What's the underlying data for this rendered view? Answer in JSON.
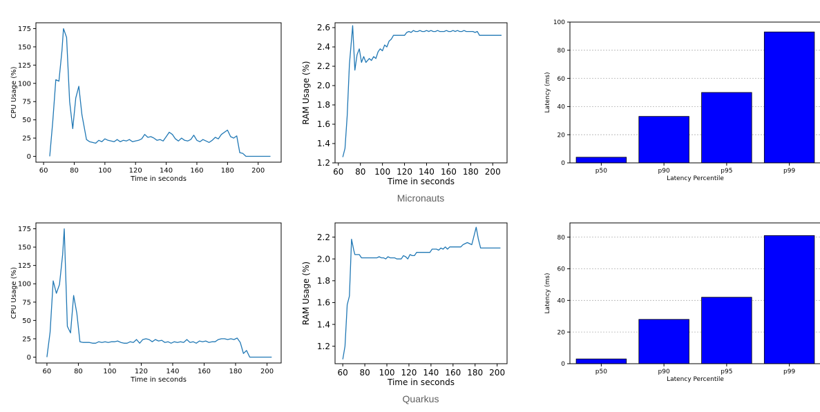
{
  "colors": {
    "line": "#1f77b4",
    "bar": "#0000ff",
    "axis": "#000000",
    "grid": "#b0b0b0"
  },
  "groups": [
    {
      "caption": "Micronauts"
    },
    {
      "caption": "Quarkus"
    }
  ],
  "chart_data": [
    {
      "id": "micronauts-cpu",
      "type": "line",
      "title": "",
      "xlabel": "Time in seconds",
      "ylabel": "CPU Usage (%)",
      "xlim": [
        55,
        215
      ],
      "ylim": [
        -8,
        183
      ],
      "xticks": [
        60,
        80,
        100,
        120,
        140,
        160,
        180,
        200
      ],
      "yticks": [
        0,
        25,
        50,
        75,
        100,
        125,
        150,
        175
      ],
      "grid": false,
      "series": [
        {
          "name": "CPU Usage",
          "x": [
            64,
            66,
            68,
            70,
            72,
            73,
            75,
            77,
            79,
            81,
            83,
            85,
            88,
            90,
            92,
            94,
            96,
            98,
            100,
            102,
            104,
            106,
            108,
            110,
            112,
            114,
            116,
            118,
            120,
            122,
            124,
            126,
            128,
            130,
            132,
            134,
            136,
            138,
            140,
            142,
            144,
            146,
            148,
            150,
            152,
            154,
            156,
            158,
            160,
            162,
            164,
            166,
            168,
            170,
            172,
            174,
            176,
            178,
            180,
            182,
            184,
            186,
            188,
            190,
            192,
            194,
            196,
            198,
            200,
            202,
            204,
            206,
            208
          ],
          "y": [
            0,
            48,
            105,
            103,
            145,
            175,
            163,
            75,
            38,
            80,
            96,
            57,
            23,
            20,
            19,
            18,
            22,
            20,
            24,
            22,
            21,
            20,
            23,
            20,
            22,
            21,
            23,
            20,
            21,
            22,
            24,
            30,
            26,
            27,
            25,
            22,
            23,
            21,
            27,
            33,
            30,
            24,
            21,
            25,
            22,
            21,
            23,
            29,
            22,
            20,
            23,
            21,
            19,
            22,
            26,
            24,
            30,
            33,
            36,
            27,
            25,
            28,
            5,
            4,
            0,
            0,
            0,
            0,
            0,
            0,
            0,
            0,
            0
          ]
        }
      ]
    },
    {
      "id": "micronauts-ram",
      "type": "line",
      "title": "",
      "xlabel": "Time in seconds",
      "ylabel": "RAM Usage (%)",
      "xlim": [
        57,
        213
      ],
      "ylim": [
        1.2,
        2.65
      ],
      "xticks": [
        60,
        80,
        100,
        120,
        140,
        160,
        180,
        200
      ],
      "yticks": [
        1.2,
        1.4,
        1.6,
        1.8,
        2.0,
        2.2,
        2.4,
        2.6
      ],
      "grid": false,
      "series": [
        {
          "name": "RAM Usage",
          "x": [
            64,
            66,
            68,
            70,
            72,
            73,
            75,
            77,
            79,
            81,
            83,
            85,
            88,
            90,
            92,
            94,
            96,
            98,
            100,
            102,
            104,
            106,
            108,
            110,
            112,
            114,
            116,
            118,
            120,
            122,
            124,
            126,
            128,
            130,
            132,
            134,
            136,
            138,
            140,
            142,
            144,
            146,
            148,
            150,
            152,
            154,
            156,
            158,
            160,
            162,
            164,
            166,
            168,
            170,
            172,
            174,
            176,
            178,
            180,
            182,
            184,
            186,
            188,
            190,
            192,
            194,
            196,
            198,
            200,
            202,
            204,
            206,
            208
          ],
          "y": [
            1.26,
            1.35,
            1.69,
            2.22,
            2.48,
            2.62,
            2.16,
            2.32,
            2.38,
            2.24,
            2.3,
            2.24,
            2.28,
            2.26,
            2.3,
            2.28,
            2.35,
            2.38,
            2.36,
            2.42,
            2.4,
            2.46,
            2.48,
            2.52,
            2.52,
            2.52,
            2.52,
            2.52,
            2.52,
            2.55,
            2.56,
            2.55,
            2.57,
            2.56,
            2.56,
            2.57,
            2.56,
            2.56,
            2.57,
            2.56,
            2.57,
            2.56,
            2.56,
            2.57,
            2.56,
            2.56,
            2.56,
            2.57,
            2.56,
            2.56,
            2.57,
            2.56,
            2.57,
            2.56,
            2.56,
            2.57,
            2.56,
            2.56,
            2.56,
            2.56,
            2.55,
            2.56,
            2.52,
            2.52,
            2.52,
            2.52,
            2.52,
            2.52,
            2.52,
            2.52,
            2.52,
            2.52,
            2.52
          ]
        }
      ]
    },
    {
      "id": "micronauts-latency",
      "type": "bar",
      "title": "",
      "xlabel": "Latency Percentile",
      "ylabel": "Latency (ms)",
      "categories": [
        "p50",
        "p90",
        "p95",
        "p99"
      ],
      "values": [
        4,
        33,
        50,
        93
      ],
      "ylim": [
        0,
        100
      ],
      "yticks": [
        0,
        20,
        40,
        60,
        80,
        100
      ],
      "grid": true
    },
    {
      "id": "quarkus-cpu",
      "type": "line",
      "title": "",
      "xlabel": "Time in seconds",
      "ylabel": "CPU Usage (%)",
      "xlim": [
        53,
        209
      ],
      "ylim": [
        -8,
        183
      ],
      "xticks": [
        60,
        80,
        100,
        120,
        140,
        160,
        180,
        200
      ],
      "yticks": [
        0,
        25,
        50,
        75,
        100,
        125,
        150,
        175
      ],
      "grid": false,
      "series": [
        {
          "name": "CPU Usage",
          "x": [
            60,
            62,
            64,
            66,
            68,
            70,
            71,
            73,
            75,
            77,
            79,
            81,
            83,
            85,
            87,
            89,
            91,
            93,
            95,
            97,
            99,
            101,
            103,
            105,
            107,
            109,
            111,
            113,
            115,
            117,
            119,
            121,
            123,
            125,
            127,
            129,
            131,
            133,
            135,
            137,
            139,
            141,
            143,
            145,
            147,
            149,
            151,
            153,
            155,
            157,
            159,
            161,
            163,
            165,
            167,
            169,
            171,
            173,
            175,
            177,
            179,
            181,
            183,
            185,
            187,
            189,
            191,
            193,
            195,
            197,
            199,
            201,
            203
          ],
          "y": [
            0,
            34,
            104,
            87,
            99,
            140,
            175,
            42,
            33,
            84,
            60,
            21,
            20,
            20,
            20,
            19,
            19,
            21,
            20,
            21,
            20,
            21,
            21,
            22,
            20,
            19,
            19,
            21,
            20,
            24,
            19,
            24,
            25,
            24,
            21,
            24,
            22,
            23,
            20,
            21,
            19,
            21,
            20,
            21,
            20,
            24,
            20,
            21,
            19,
            22,
            21,
            22,
            20,
            21,
            21,
            24,
            25,
            25,
            24,
            25,
            24,
            26,
            20,
            5,
            9,
            0,
            0,
            0,
            0,
            0,
            0,
            0,
            0
          ]
        }
      ]
    },
    {
      "id": "quarkus-ram",
      "type": "line",
      "title": "",
      "xlabel": "Time in seconds",
      "ylabel": "RAM Usage (%)",
      "xlim": [
        53,
        209
      ],
      "ylim": [
        1.04,
        2.33
      ],
      "xticks": [
        60,
        80,
        100,
        120,
        140,
        160,
        180,
        200
      ],
      "yticks": [
        1.2,
        1.4,
        1.6,
        1.8,
        2.0,
        2.2
      ],
      "grid": false,
      "series": [
        {
          "name": "RAM Usage",
          "x": [
            60,
            62,
            64,
            66,
            68,
            70,
            71,
            73,
            75,
            77,
            79,
            81,
            83,
            85,
            87,
            89,
            91,
            93,
            95,
            97,
            99,
            101,
            103,
            105,
            107,
            109,
            111,
            113,
            115,
            117,
            119,
            121,
            123,
            125,
            127,
            129,
            131,
            133,
            135,
            137,
            139,
            141,
            143,
            145,
            147,
            149,
            151,
            153,
            155,
            157,
            159,
            161,
            163,
            165,
            167,
            169,
            171,
            173,
            175,
            177,
            179,
            181,
            183,
            185,
            187,
            189,
            191,
            193,
            195,
            197,
            199,
            201,
            203
          ],
          "y": [
            1.08,
            1.2,
            1.58,
            1.66,
            2.18,
            2.08,
            2.04,
            2.04,
            2.04,
            2.01,
            2.01,
            2.01,
            2.01,
            2.01,
            2.01,
            2.01,
            2.01,
            2.02,
            2.01,
            2.01,
            2.0,
            2.02,
            2.01,
            2.01,
            2.01,
            2.0,
            2.0,
            2.0,
            2.03,
            2.02,
            2.0,
            2.04,
            2.03,
            2.03,
            2.06,
            2.06,
            2.06,
            2.06,
            2.06,
            2.06,
            2.06,
            2.09,
            2.09,
            2.09,
            2.08,
            2.1,
            2.09,
            2.11,
            2.09,
            2.11,
            2.11,
            2.11,
            2.11,
            2.11,
            2.11,
            2.13,
            2.14,
            2.15,
            2.14,
            2.13,
            2.21,
            2.29,
            2.18,
            2.1,
            2.1,
            2.1,
            2.1,
            2.1,
            2.1,
            2.1,
            2.1,
            2.1,
            2.1
          ]
        }
      ]
    },
    {
      "id": "quarkus-latency",
      "type": "bar",
      "title": "",
      "xlabel": "Latency Percentile",
      "ylabel": "Latency (ms)",
      "categories": [
        "p50",
        "p90",
        "p95",
        "p99"
      ],
      "values": [
        3,
        28,
        42,
        81
      ],
      "ylim": [
        0,
        89
      ],
      "yticks": [
        0,
        20,
        40,
        60,
        80
      ],
      "grid": true
    }
  ]
}
